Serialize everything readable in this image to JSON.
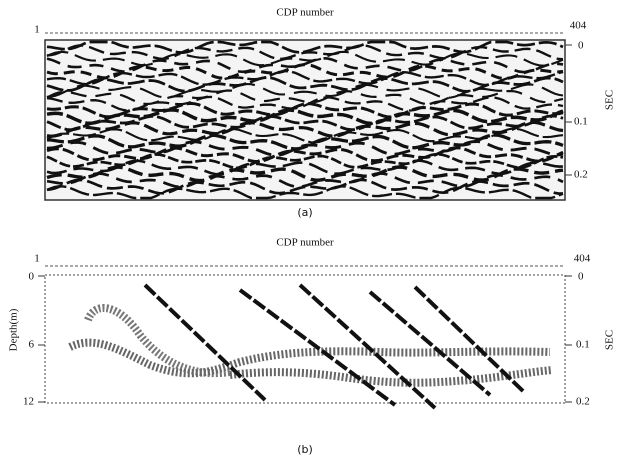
{
  "panels": [
    {
      "title": "CDP number",
      "x_start": "1",
      "x_end": "404",
      "right_axis_label": "SEC",
      "right_ticks": [
        "0",
        "0.1",
        "0.2"
      ],
      "caption": "(a)"
    },
    {
      "title": "CDP number",
      "x_start": "1",
      "x_end": "404",
      "left_axis_label": "Depth(m)",
      "left_ticks": [
        "0",
        "6",
        "12"
      ],
      "right_axis_label": "SEC",
      "right_ticks": [
        "0",
        "0.1",
        "0.2"
      ],
      "caption": "(b)"
    }
  ]
}
